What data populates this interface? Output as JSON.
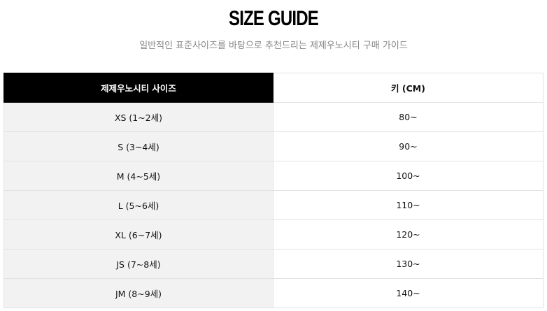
{
  "title": "SIZE GUIDE",
  "subtitle": "일반적인 표준사이즈를 바탕으로 추천드리는 제제우노시티 구매 가이드",
  "table": {
    "headers": [
      "제제우노시티 사이즈",
      "키 (CM)"
    ],
    "rows": [
      [
        "XS (1~2세)",
        "80~"
      ],
      [
        "S (3~4세)",
        "90~"
      ],
      [
        "M (4~5세)",
        "100~"
      ],
      [
        "L (5~6세)",
        "110~"
      ],
      [
        "XL (6~7세)",
        "120~"
      ],
      [
        "JS (7~8세)",
        "130~"
      ],
      [
        "JM (8~9세)",
        "140~"
      ]
    ]
  }
}
